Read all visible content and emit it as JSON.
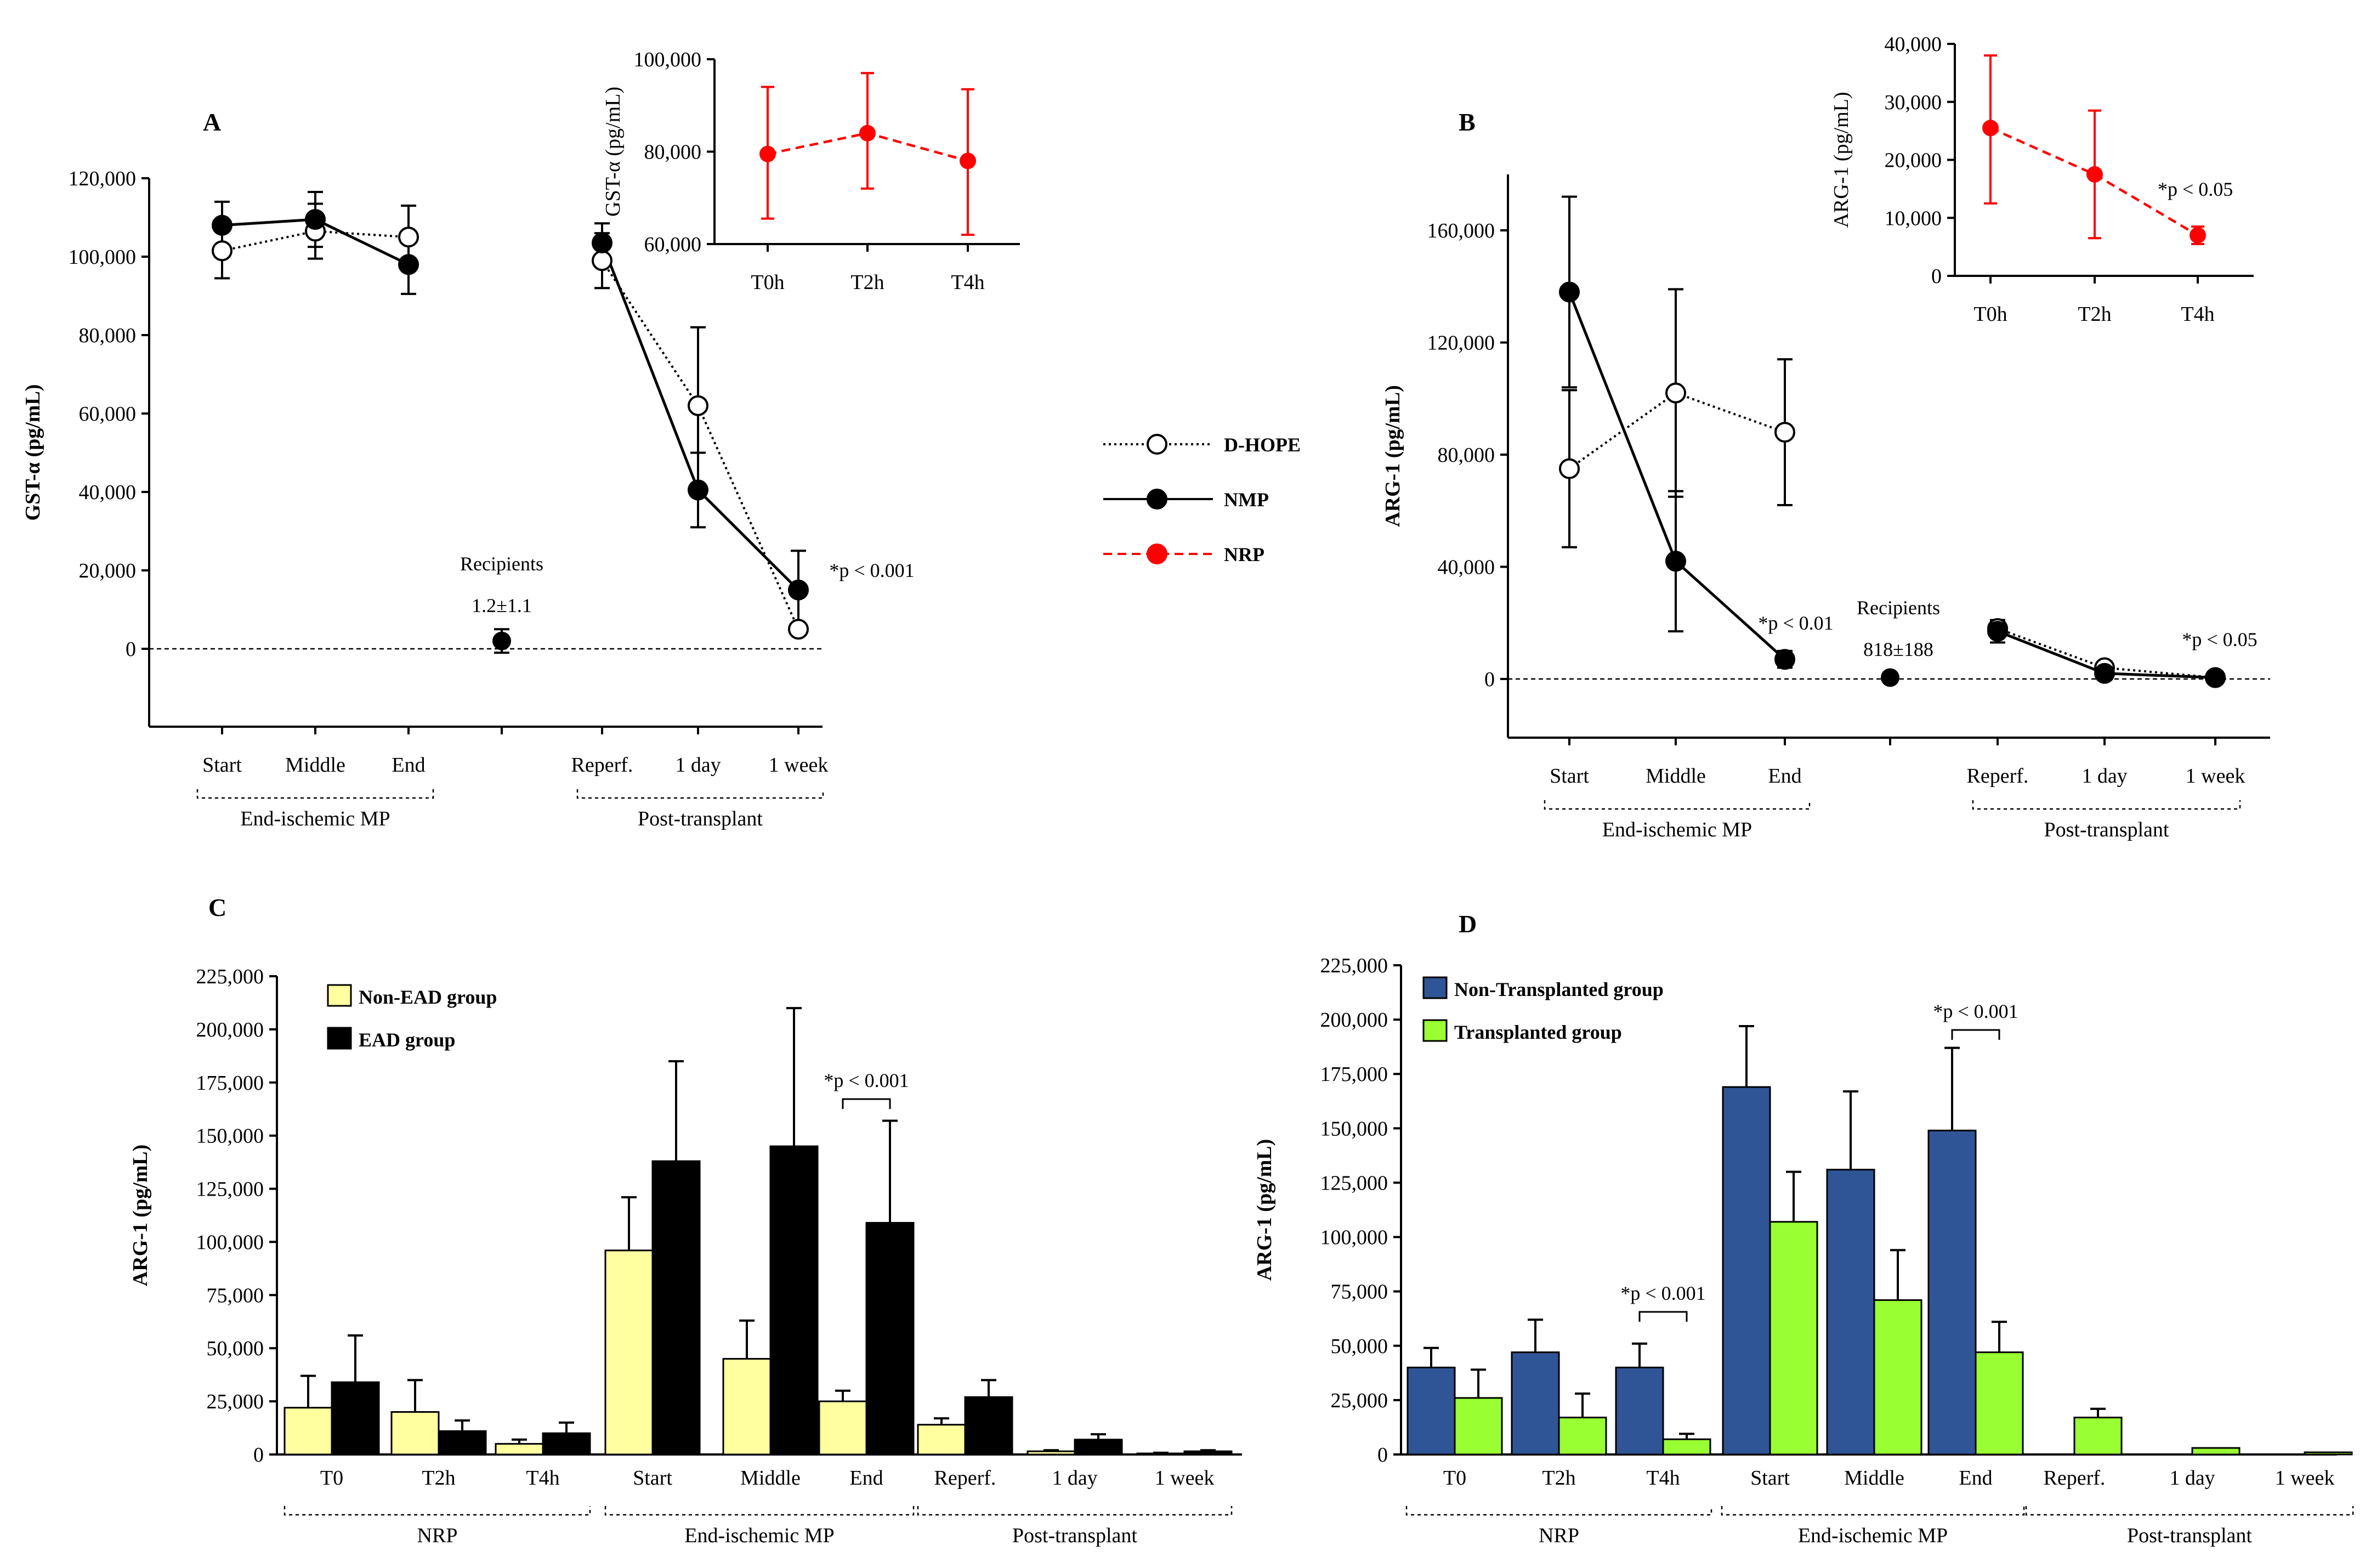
{
  "legend_shared": {
    "items": [
      {
        "name": "D-HOPE",
        "color": "#000000",
        "marker": "open",
        "line": "dotted"
      },
      {
        "name": "NMP",
        "color": "#000000",
        "marker": "filled",
        "line": "solid"
      },
      {
        "name": "NRP",
        "color": "#ff0000",
        "marker": "filled",
        "line": "dashed"
      }
    ]
  },
  "chart_data": [
    {
      "panel": "A",
      "type": "line",
      "ylabel": "GST-α (pg/mL)",
      "ylim": [
        -20000,
        120000
      ],
      "yticks": [
        0,
        20000,
        40000,
        60000,
        80000,
        100000,
        120000
      ],
      "ytick_labels": [
        "0",
        "20,000",
        "40,000",
        "60,000",
        "80,000",
        "100,000",
        "120,000"
      ],
      "categories": [
        "Start",
        "Middle",
        "End",
        "",
        "Reperf.",
        "1 day",
        "1 week"
      ],
      "groups": [
        {
          "label": "End-ischemic MP",
          "from": 0,
          "to": 2
        },
        {
          "label": "Post-transplant",
          "from": 4,
          "to": 6
        }
      ],
      "reference_line": 0,
      "series": [
        {
          "name": "D-HOPE",
          "segments": [
            [
              0,
              1,
              2
            ],
            [
              4,
              5,
              6
            ]
          ],
          "values": [
            101500,
            106500,
            105000,
            null,
            99000,
            62000,
            5000
          ],
          "err": [
            7000,
            7000,
            8000,
            null,
            7000,
            20000,
            0
          ]
        },
        {
          "name": "NMP",
          "segments": [
            [
              0,
              1,
              2
            ],
            [
              4,
              5,
              6
            ]
          ],
          "values": [
            108000,
            109500,
            98000,
            null,
            103500,
            40500,
            15000
          ],
          "err": [
            6000,
            7000,
            7500,
            null,
            5000,
            9500,
            10000
          ]
        }
      ],
      "recipients": {
        "x_index": 3,
        "value": 2000,
        "err": 3000,
        "title": "Recipients",
        "value_label": "1.2±1.1"
      },
      "annotations": [
        {
          "text": "*p < 0.001",
          "x_index": 6
        }
      ]
    },
    {
      "panel": "A-inset",
      "type": "line",
      "ylabel": "GST-α (pg/mL)",
      "ylim": [
        60000,
        100000
      ],
      "yticks": [
        60000,
        80000,
        100000
      ],
      "ytick_labels": [
        "60,000",
        "80,000",
        "100,000"
      ],
      "categories": [
        "T0h",
        "T2h",
        "T4h"
      ],
      "series": [
        {
          "name": "NRP",
          "values": [
            79500,
            84000,
            78000
          ],
          "err_up": [
            14500,
            13000,
            15500
          ],
          "err_down": [
            14000,
            12000,
            16000
          ]
        }
      ]
    },
    {
      "panel": "B",
      "type": "line",
      "ylabel": "ARG-1 (pg/mL)",
      "ylim": [
        -20000,
        180000
      ],
      "yticks": [
        0,
        40000,
        80000,
        120000,
        160000
      ],
      "ytick_labels": [
        "0",
        "40,000",
        "80,000",
        "120,000",
        "160,000"
      ],
      "categories": [
        "Start",
        "Middle",
        "End",
        "",
        "Reperf.",
        "1 day",
        "1 week"
      ],
      "groups": [
        {
          "label": "End-ischemic MP",
          "from": 0,
          "to": 2
        },
        {
          "label": "Post-transplant",
          "from": 4,
          "to": 6
        }
      ],
      "reference_line": 0,
      "series": [
        {
          "name": "D-HOPE",
          "segments": [
            [
              0,
              1,
              2
            ],
            [
              4,
              5,
              6
            ]
          ],
          "values": [
            75000,
            102000,
            88000,
            null,
            18000,
            4000,
            500
          ],
          "err": [
            28000,
            37000,
            26000,
            null,
            3000,
            1000,
            500
          ]
        },
        {
          "name": "NMP",
          "segments": [
            [
              0,
              1,
              2
            ],
            [
              4,
              5,
              6
            ]
          ],
          "values": [
            138000,
            42000,
            7000,
            null,
            17000,
            2000,
            500
          ],
          "err": [
            34000,
            25000,
            3000,
            null,
            4000,
            1000,
            500
          ]
        }
      ],
      "recipients": {
        "x_index": 3,
        "value": 500,
        "err": 0,
        "title": "Recipients",
        "value_label": "818±188"
      },
      "annotations": [
        {
          "text": "*p < 0.01",
          "x_index": 2
        },
        {
          "text": "*p < 0.05",
          "x_index": 6
        }
      ]
    },
    {
      "panel": "B-inset",
      "type": "line",
      "ylabel": "ARG-1 (pg/mL)",
      "ylim": [
        0,
        40000
      ],
      "yticks": [
        0,
        10000,
        20000,
        30000,
        40000
      ],
      "ytick_labels": [
        "0",
        "10,000",
        "20,000",
        "30,000",
        "40,000"
      ],
      "categories": [
        "T0h",
        "T2h",
        "T4h"
      ],
      "series": [
        {
          "name": "NRP",
          "values": [
            25500,
            17500,
            7000
          ],
          "err_up": [
            12500,
            11000,
            1500
          ],
          "err_down": [
            13000,
            11000,
            1500
          ]
        }
      ],
      "annotations": [
        {
          "text": "*p < 0.05"
        }
      ]
    },
    {
      "panel": "C",
      "type": "bar",
      "ylabel": "ARG-1 (pg/mL)",
      "ylim": [
        0,
        225000
      ],
      "yticks": [
        0,
        25000,
        50000,
        75000,
        100000,
        125000,
        150000,
        175000,
        200000,
        225000
      ],
      "ytick_labels": [
        "0",
        "25,000",
        "50,000",
        "75,000",
        "100,000",
        "125,000",
        "150,000",
        "175,000",
        "200,000",
        "225,000"
      ],
      "categories": [
        "T0",
        "T2h",
        "T4h",
        "Start",
        "Middle",
        "End",
        "Reperf.",
        "1 day",
        "1 week"
      ],
      "groups": [
        {
          "label": "NRP",
          "from": 0,
          "to": 2
        },
        {
          "label": "End-ischemic MP",
          "from": 3,
          "to": 5
        },
        {
          "label": "Post-transplant",
          "from": 6,
          "to": 8
        }
      ],
      "series": [
        {
          "name": "Non-EAD group",
          "color": "#ffffa0",
          "values": [
            22000,
            20000,
            5000,
            96000,
            45000,
            25000,
            14000,
            1500,
            500
          ],
          "err": [
            15000,
            15000,
            2000,
            25000,
            18000,
            5000,
            3000,
            500,
            300
          ]
        },
        {
          "name": "EAD group",
          "color": "#000000",
          "values": [
            34000,
            11000,
            10000,
            138000,
            145000,
            109000,
            27000,
            7000,
            1500
          ],
          "err": [
            22000,
            5000,
            5000,
            47000,
            65000,
            48000,
            8000,
            2500,
            500
          ]
        }
      ],
      "annotations": [
        {
          "text": "*p < 0.001",
          "x_index": 5
        }
      ]
    },
    {
      "panel": "D",
      "type": "bar",
      "ylabel": "ARG-1 (pg/mL)",
      "ylim": [
        0,
        225000
      ],
      "yticks": [
        0,
        25000,
        50000,
        75000,
        100000,
        125000,
        150000,
        175000,
        200000,
        225000
      ],
      "ytick_labels": [
        "0",
        "25,000",
        "50,000",
        "75,000",
        "100,000",
        "125,000",
        "150,000",
        "175,000",
        "200,000",
        "225,000"
      ],
      "categories": [
        "T0",
        "T2h",
        "T4h",
        "Start",
        "Middle",
        "End",
        "Reperf.",
        "1 day",
        "1 week"
      ],
      "groups": [
        {
          "label": "NRP",
          "from": 0,
          "to": 2
        },
        {
          "label": "End-ischemic MP",
          "from": 3,
          "to": 5
        },
        {
          "label": "Post-transplant",
          "from": 6,
          "to": 8
        }
      ],
      "series": [
        {
          "name": "Non-Transplanted group",
          "color": "#2f5597",
          "values": [
            40000,
            47000,
            40000,
            169000,
            131000,
            149000,
            null,
            null,
            null
          ],
          "err": [
            9000,
            15000,
            11000,
            28000,
            36000,
            38000,
            null,
            null,
            null
          ]
        },
        {
          "name": "Transplanted group",
          "color": "#99ff33",
          "values": [
            26000,
            17000,
            7000,
            107000,
            71000,
            47000,
            17000,
            3000,
            1000
          ],
          "err": [
            13000,
            11000,
            2500,
            23000,
            23000,
            14000,
            4000,
            0,
            0
          ]
        }
      ],
      "annotations": [
        {
          "text": "*p < 0.001",
          "x_index": 2
        },
        {
          "text": "*p < 0.001",
          "x_index": 5
        }
      ]
    }
  ]
}
